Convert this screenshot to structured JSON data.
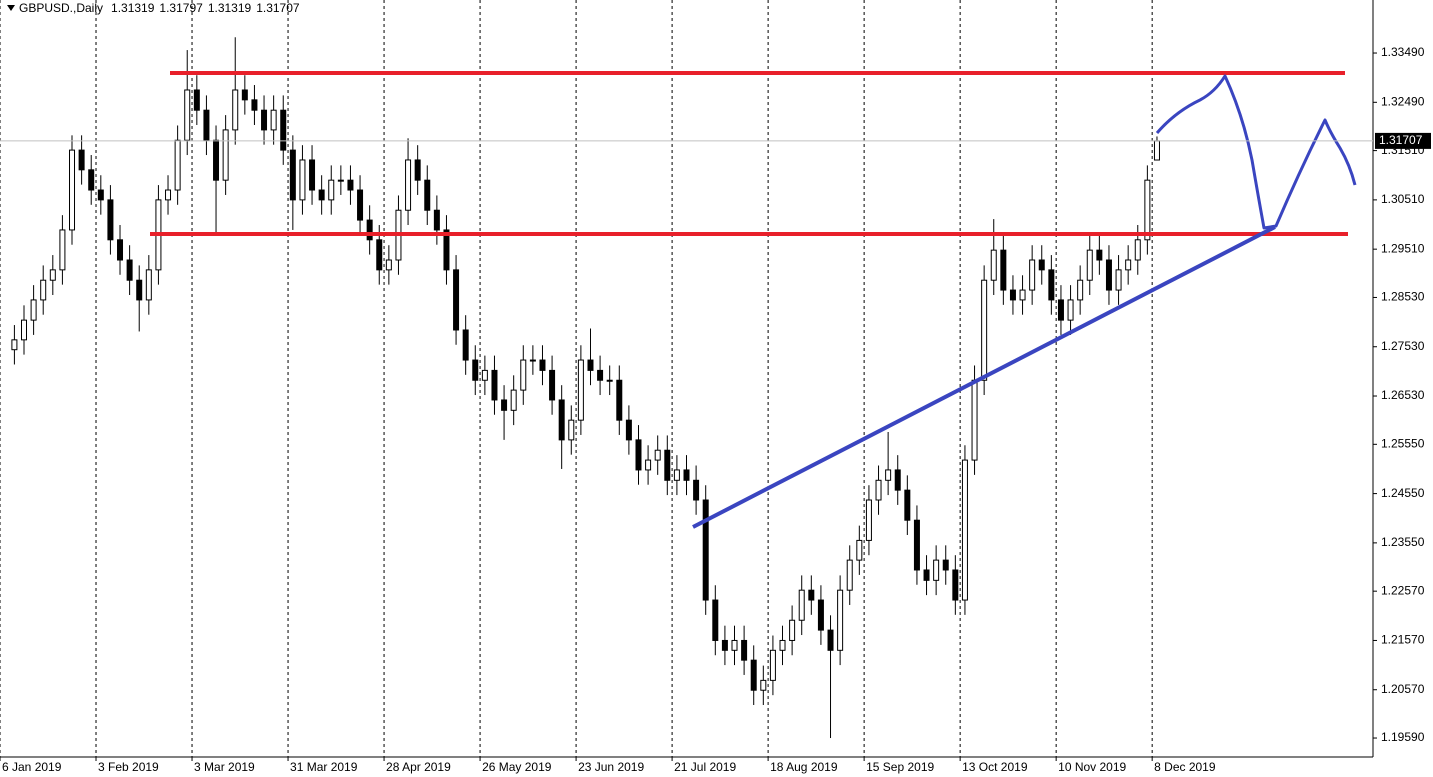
{
  "chart_data": {
    "type": "candlestick",
    "title": "GBPUSD.,Daily",
    "open": [
      1.2747,
      1.2767,
      1.2807,
      1.2848,
      1.2888,
      1.2909,
      1.299,
      1.3152,
      1.3112,
      1.3071,
      1.3051,
      1.297,
      1.2929,
      1.2888,
      1.2848,
      1.2909,
      1.3051,
      1.3071,
      1.3172,
      1.3274,
      1.3233,
      1.3172,
      1.3091,
      1.3193,
      1.3274,
      1.3254,
      1.3233,
      1.3193,
      1.3233,
      1.3152,
      1.3051,
      1.3132,
      1.3071,
      1.3051,
      1.3091,
      1.3091,
      1.3071,
      1.301,
      1.297,
      1.2909,
      1.2929,
      1.303,
      1.3132,
      1.3091,
      1.303,
      1.299,
      1.2909,
      1.2787,
      1.2726,
      1.2685,
      1.2705,
      1.2645,
      1.2624,
      1.2665,
      1.2726,
      1.2726,
      1.2705,
      1.2645,
      1.2564,
      1.2604,
      1.2726,
      1.2705,
      1.2685,
      1.2685,
      1.2604,
      1.2564,
      1.2503,
      1.2523,
      1.2543,
      1.2482,
      1.2503,
      1.2482,
      1.2442,
      1.2239,
      1.2157,
      1.2137,
      1.2157,
      1.2117,
      1.2056,
      1.2076,
      1.2137,
      1.2157,
      1.2198,
      1.2259,
      1.2239,
      1.2178,
      1.2137,
      1.2259,
      1.232,
      1.236,
      1.2442,
      1.2482,
      1.2503,
      1.2462,
      1.2401,
      1.23,
      1.2279,
      1.232,
      1.23,
      1.2239,
      1.2523,
      1.2685,
      1.2888,
      1.2949,
      1.2868,
      1.2848,
      1.2868,
      1.2929,
      1.2909,
      1.2848,
      1.2807,
      1.2848,
      1.2888,
      1.2949,
      1.2929,
      1.2868,
      1.2909,
      1.2929,
      1.297,
      1.31319
    ],
    "high": [
      1.2797,
      1.2837,
      1.2878,
      1.2918,
      1.2939,
      1.302,
      1.3182,
      1.3182,
      1.3142,
      1.3101,
      1.3081,
      1.3,
      1.2959,
      1.2918,
      1.2939,
      1.3081,
      1.3101,
      1.3202,
      1.3355,
      1.3304,
      1.3263,
      1.3202,
      1.3223,
      1.3381,
      1.3304,
      1.3284,
      1.3263,
      1.3263,
      1.3263,
      1.3182,
      1.3162,
      1.3162,
      1.3101,
      1.3121,
      1.3121,
      1.3121,
      1.3101,
      1.304,
      1.3,
      1.2959,
      1.306,
      1.3176,
      1.3162,
      1.3121,
      1.306,
      1.302,
      1.2939,
      1.2817,
      1.2756,
      1.2735,
      1.2735,
      1.2675,
      1.2695,
      1.2756,
      1.2756,
      1.2756,
      1.2735,
      1.2675,
      1.2634,
      1.2756,
      1.279,
      1.2735,
      1.2715,
      1.2715,
      1.2634,
      1.2594,
      1.2553,
      1.2573,
      1.2573,
      1.2533,
      1.2533,
      1.2512,
      1.2472,
      1.2269,
      1.2187,
      1.2187,
      1.2187,
      1.2147,
      1.2106,
      1.2167,
      1.2187,
      1.2228,
      1.2289,
      1.2289,
      1.2269,
      1.2208,
      1.2289,
      1.235,
      1.239,
      1.2472,
      1.2512,
      1.258,
      1.2533,
      1.2492,
      1.2431,
      1.233,
      1.235,
      1.235,
      1.233,
      1.2553,
      1.2715,
      1.2918,
      1.3012,
      1.2979,
      1.2898,
      1.2898,
      1.2959,
      1.2959,
      1.2939,
      1.2878,
      1.2878,
      1.2918,
      1.2979,
      1.2979,
      1.2959,
      1.2939,
      1.2959,
      1.3,
      1.3121,
      1.31797
    ],
    "low": [
      1.2717,
      1.2737,
      1.2777,
      1.2818,
      1.2858,
      1.2879,
      1.296,
      1.3082,
      1.3041,
      1.3021,
      1.294,
      1.2899,
      1.2858,
      1.2784,
      1.2818,
      1.2879,
      1.3021,
      1.3041,
      1.3142,
      1.3203,
      1.3142,
      1.298,
      1.3061,
      1.3163,
      1.3224,
      1.3203,
      1.3163,
      1.3163,
      1.3122,
      1.299,
      1.3021,
      1.3041,
      1.3021,
      1.3021,
      1.3061,
      1.3041,
      1.298,
      1.294,
      1.2879,
      1.2879,
      1.2899,
      1.3,
      1.3061,
      1.3,
      1.296,
      1.2879,
      1.2757,
      1.2696,
      1.2655,
      1.2655,
      1.2615,
      1.2564,
      1.2594,
      1.2635,
      1.2696,
      1.2675,
      1.2615,
      1.2505,
      1.2534,
      1.2574,
      1.2675,
      1.2655,
      1.2655,
      1.2574,
      1.2534,
      1.2473,
      1.2473,
      1.2493,
      1.2452,
      1.2452,
      1.2452,
      1.2412,
      1.2209,
      1.2127,
      1.2107,
      1.2107,
      1.2087,
      1.2026,
      1.2026,
      1.2046,
      1.2107,
      1.2127,
      1.2168,
      1.2209,
      1.2148,
      1.1959,
      1.2107,
      1.2229,
      1.229,
      1.233,
      1.2412,
      1.2452,
      1.2432,
      1.2371,
      1.227,
      1.2249,
      1.2249,
      1.227,
      1.2209,
      1.2209,
      1.2493,
      1.2655,
      1.2858,
      1.2838,
      1.2818,
      1.2818,
      1.2838,
      1.2879,
      1.2818,
      1.2777,
      1.2777,
      1.2818,
      1.2858,
      1.2899,
      1.2838,
      1.2838,
      1.2879,
      1.2899,
      1.294,
      1.31319
    ],
    "close": [
      1.2767,
      1.2807,
      1.2848,
      1.2888,
      1.2909,
      1.299,
      1.3152,
      1.3112,
      1.3071,
      1.3051,
      1.297,
      1.2929,
      1.2888,
      1.2848,
      1.2909,
      1.3051,
      1.3071,
      1.3172,
      1.3274,
      1.3233,
      1.3172,
      1.3091,
      1.3193,
      1.3274,
      1.3254,
      1.3233,
      1.3193,
      1.3233,
      1.3152,
      1.3051,
      1.3132,
      1.3071,
      1.3051,
      1.3091,
      1.3091,
      1.3071,
      1.301,
      1.297,
      1.2909,
      1.2929,
      1.303,
      1.3132,
      1.3091,
      1.303,
      1.299,
      1.2909,
      1.2787,
      1.2726,
      1.2685,
      1.2705,
      1.2645,
      1.2624,
      1.2665,
      1.2726,
      1.2726,
      1.2705,
      1.2645,
      1.2564,
      1.2604,
      1.2726,
      1.2705,
      1.2685,
      1.2685,
      1.2604,
      1.2564,
      1.2503,
      1.2523,
      1.2543,
      1.2482,
      1.2503,
      1.2482,
      1.2442,
      1.2239,
      1.2157,
      1.2137,
      1.2157,
      1.2117,
      1.2056,
      1.2076,
      1.2137,
      1.2157,
      1.2198,
      1.2259,
      1.2239,
      1.2178,
      1.2137,
      1.2259,
      1.232,
      1.236,
      1.2442,
      1.2482,
      1.2503,
      1.2462,
      1.2401,
      1.23,
      1.2279,
      1.232,
      1.23,
      1.2239,
      1.2523,
      1.2685,
      1.2888,
      1.2949,
      1.2868,
      1.2848,
      1.2868,
      1.2929,
      1.2909,
      1.2848,
      1.2807,
      1.2848,
      1.2888,
      1.2949,
      1.2929,
      1.2868,
      1.2909,
      1.2929,
      1.297,
      1.3091,
      1.31707
    ],
    "up_color": "#ffffff",
    "down_color": "#000000",
    "xlim": [
      -1.5,
      141.5
    ],
    "xticks": [
      {
        "value": -1.5,
        "label": "6 Jan 2019"
      },
      {
        "value": 8.5,
        "label": "3 Feb 2019"
      },
      {
        "value": 18.5,
        "label": "3 Mar 2019"
      },
      {
        "value": 28.5,
        "label": "31 Mar 2019"
      },
      {
        "value": 38.5,
        "label": "28 Apr 2019"
      },
      {
        "value": 48.5,
        "label": "26 May 2019"
      },
      {
        "value": 58.5,
        "label": "23 Jun 2019"
      },
      {
        "value": 68.5,
        "label": "21 Jul 2019"
      },
      {
        "value": 78.5,
        "label": "18 Aug 2019"
      },
      {
        "value": 88.5,
        "label": "15 Sep 2019"
      },
      {
        "value": 98.5,
        "label": "13 Oct 2019"
      },
      {
        "value": 108.5,
        "label": "10 Nov 2019"
      },
      {
        "value": 118.5,
        "label": "8 Dec 2019"
      }
    ],
    "ylim": [
      1.19205,
      1.34566
    ],
    "yticks": [
      {
        "value": 1.3349,
        "label": "1.33490"
      },
      {
        "value": 1.3249,
        "label": "1.32490"
      },
      {
        "value": 1.3151,
        "label": "1.31510"
      },
      {
        "value": 1.3051,
        "label": "1.30510"
      },
      {
        "value": 1.2951,
        "label": "1.29510"
      },
      {
        "value": 1.2853,
        "label": "1.28530"
      },
      {
        "value": 1.2753,
        "label": "1.27530"
      },
      {
        "value": 1.2653,
        "label": "1.26530"
      },
      {
        "value": 1.2555,
        "label": "1.25550"
      },
      {
        "value": 1.2455,
        "label": "1.24550"
      },
      {
        "value": 1.2355,
        "label": "1.23550"
      },
      {
        "value": 1.2257,
        "label": "1.22570"
      },
      {
        "value": 1.2157,
        "label": "1.21570"
      },
      {
        "value": 1.2057,
        "label": "1.20570"
      },
      {
        "value": 1.1959,
        "label": "1.19590"
      }
    ],
    "grid": true
  }
}
